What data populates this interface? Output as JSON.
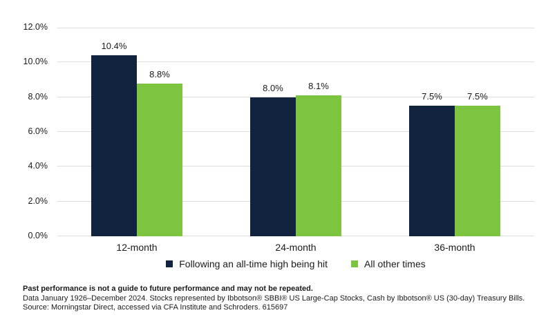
{
  "chart_data": {
    "type": "bar",
    "title": "",
    "xlabel": "",
    "ylabel": "",
    "categories": [
      "12-month",
      "24-month",
      "36-month"
    ],
    "series": [
      {
        "name": "Following an all-time high being hit",
        "color": "#122340",
        "values": [
          10.4,
          8.0,
          7.5
        ],
        "labels": [
          "10.4%",
          "8.0%",
          "7.5%"
        ]
      },
      {
        "name": "All other times",
        "color": "#7DC540",
        "values": [
          8.8,
          8.1,
          7.5
        ],
        "labels": [
          "8.8%",
          "8.1%",
          "7.5%"
        ]
      }
    ],
    "ylim": [
      0,
      12
    ],
    "yticks": [
      {
        "value": 0,
        "label": "0.0%"
      },
      {
        "value": 2,
        "label": "2.0%"
      },
      {
        "value": 4,
        "label": "4.0%"
      },
      {
        "value": 6,
        "label": "6.0%"
      },
      {
        "value": 8,
        "label": "8.0%"
      },
      {
        "value": 10,
        "label": "10.0%"
      },
      {
        "value": 12,
        "label": "12.0%"
      }
    ],
    "grid": "horizontal",
    "gridline_color": "#dcdcdc",
    "legend_position": "bottom"
  },
  "footnote": {
    "line1": "Past performance is not a guide to future performance and may not be repeated.",
    "line2": "Data January 1926–December 2024. Stocks represented by Ibbotson® SBBI® US Large-Cap Stocks, Cash by Ibbotson® US (30-day) Treasury Bills.",
    "line3": "Source: Morningstar Direct, accessed via CFA Institute and Schroders. 615697"
  }
}
